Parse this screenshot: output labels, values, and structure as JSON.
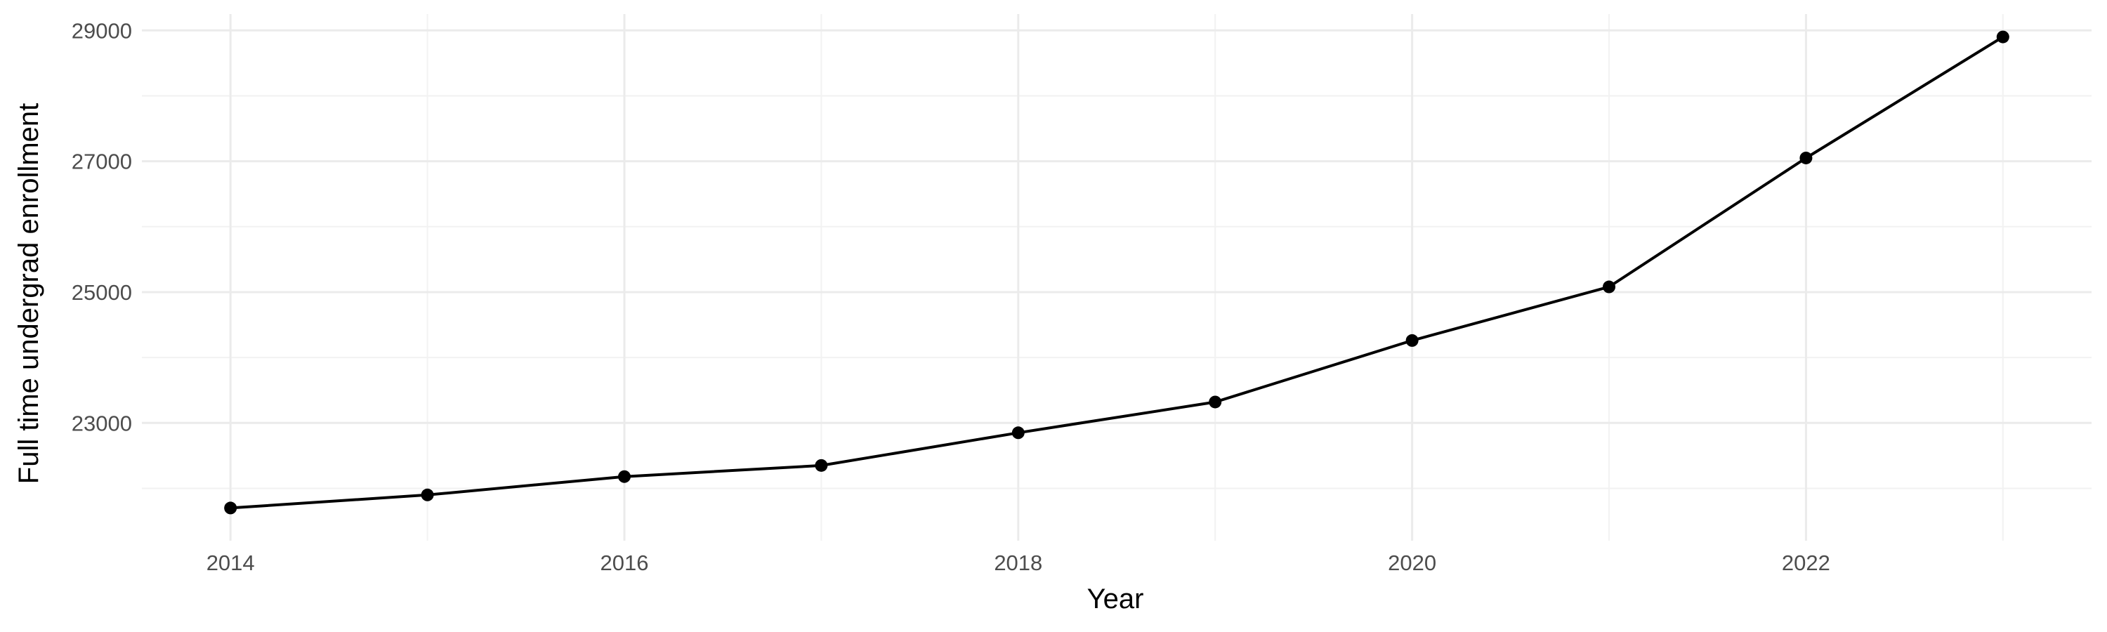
{
  "chart_data": {
    "type": "line",
    "title": "",
    "xlabel": "Year",
    "ylabel": "Full time undergrad enrollment",
    "x": [
      2014,
      2015,
      2016,
      2017,
      2018,
      2019,
      2020,
      2021,
      2022,
      2023
    ],
    "series": [
      {
        "values": [
          21700,
          21900,
          22180,
          22350,
          22850,
          23320,
          24260,
          25080,
          27050,
          28900
        ]
      }
    ],
    "x_ticks": [
      2014,
      2016,
      2018,
      2020,
      2022
    ],
    "y_ticks": [
      23000,
      25000,
      27000,
      29000
    ],
    "xlim": [
      2013.55,
      2023.45
    ],
    "ylim": [
      21200,
      29250
    ],
    "grid": true,
    "legend": "none",
    "colors": {
      "line": "#000000",
      "point": "#000000",
      "grid_major": "#ebebeb",
      "grid_minor": "#f2f2f2"
    }
  }
}
